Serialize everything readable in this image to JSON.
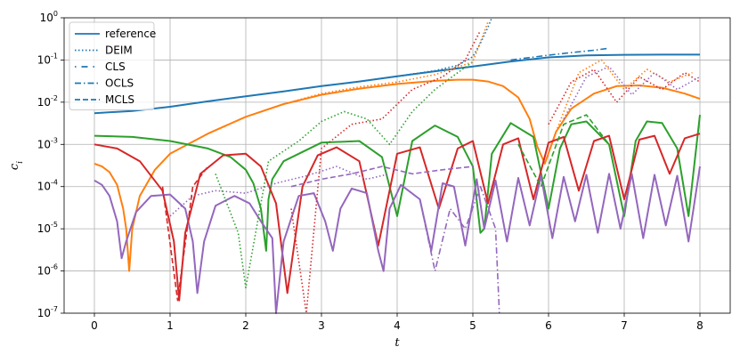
{
  "chart_data": {
    "type": "line",
    "xlabel": "t",
    "ylabel": "c_i",
    "xlim": [
      -0.4,
      8.4
    ],
    "ylim": [
      1e-07,
      1
    ],
    "yscale": "log",
    "grid": true,
    "legend_position": "top-left",
    "x_ticks": [
      0,
      1,
      2,
      3,
      4,
      5,
      6,
      7,
      8
    ],
    "x_tick_labels": [
      "0",
      "1",
      "2",
      "3",
      "4",
      "5",
      "6",
      "7",
      "8"
    ],
    "y_ticks": [
      1e-07,
      1e-06,
      1e-05,
      0.0001,
      0.001,
      0.01,
      0.1,
      1
    ],
    "y_tick_labels": [
      {
        "base": "10",
        "exp": "-7"
      },
      {
        "base": "10",
        "exp": "-6"
      },
      {
        "base": "10",
        "exp": "-5"
      },
      {
        "base": "10",
        "exp": "-4"
      },
      {
        "base": "10",
        "exp": "-3"
      },
      {
        "base": "10",
        "exp": "-2"
      },
      {
        "base": "10",
        "exp": "-1"
      },
      {
        "base": "10",
        "exp": "0"
      }
    ],
    "legend": [
      {
        "label": "reference",
        "style": "solid"
      },
      {
        "label": "DEIM",
        "style": "dotted"
      },
      {
        "label": "CLS",
        "style": "dashdotsparse"
      },
      {
        "label": "OCLS",
        "style": "dashdot"
      },
      {
        "label": "MCLS",
        "style": "dashed"
      }
    ],
    "series": [
      {
        "color": "#1f77b4",
        "style": "solid",
        "x": [
          0,
          0.5,
          1,
          1.5,
          2,
          2.5,
          3,
          3.5,
          4,
          4.5,
          5,
          5.5,
          6,
          6.5,
          7,
          7.5,
          8
        ],
        "y": [
          0.0055,
          0.0062,
          0.0078,
          0.0105,
          0.0138,
          0.018,
          0.024,
          0.031,
          0.041,
          0.054,
          0.07,
          0.092,
          0.115,
          0.128,
          0.133,
          0.134,
          0.134
        ]
      },
      {
        "color": "#1f77b4",
        "style": "dotted",
        "x": [
          3.0,
          3.5,
          4.0,
          4.5,
          4.8,
          5.0,
          5.1,
          5.2,
          5.25
        ],
        "y": [
          0.024,
          0.031,
          0.041,
          0.056,
          0.075,
          0.12,
          0.25,
          0.6,
          1.0
        ]
      },
      {
        "color": "#1f77b4",
        "style": "dashdot",
        "x": [
          5.5,
          6.0,
          6.3,
          6.6,
          6.8
        ],
        "y": [
          0.1,
          0.13,
          0.15,
          0.17,
          0.19
        ]
      },
      {
        "color": "#ff7f0e",
        "style": "solid",
        "x": [
          0,
          0.1,
          0.2,
          0.3,
          0.38,
          0.42,
          0.46,
          0.5,
          0.6,
          0.8,
          1.0,
          1.5,
          2.0,
          2.5,
          3.0,
          3.5,
          4.0,
          4.5,
          4.8,
          5.0,
          5.2,
          5.4,
          5.6,
          5.75,
          5.85,
          5.95,
          6.1,
          6.3,
          6.6,
          6.9,
          7.2,
          7.5,
          7.8,
          8.0
        ],
        "y": [
          0.00035,
          0.0003,
          0.00022,
          0.00011,
          3e-05,
          1e-05,
          1e-06,
          1e-05,
          6e-05,
          0.00025,
          0.0006,
          0.0018,
          0.0045,
          0.009,
          0.015,
          0.021,
          0.027,
          0.032,
          0.034,
          0.034,
          0.031,
          0.024,
          0.013,
          0.004,
          0.0009,
          0.00035,
          0.002,
          0.007,
          0.016,
          0.024,
          0.025,
          0.022,
          0.016,
          0.012
        ]
      },
      {
        "color": "#2ca02c",
        "style": "solid",
        "x": [
          0,
          0.5,
          1.0,
          1.5,
          1.8,
          2.0,
          2.1,
          2.2,
          2.27,
          2.3,
          2.35,
          2.5,
          3.0,
          3.5,
          3.8,
          4.0,
          4.2,
          4.5,
          4.8,
          5.0,
          5.1,
          5.15,
          5.25,
          5.5,
          5.8,
          6.0,
          6.15,
          6.3,
          6.5,
          6.8,
          7.0,
          7.15,
          7.3,
          7.5,
          7.7,
          7.85,
          8.0
        ],
        "y": [
          0.0016,
          0.0015,
          0.0012,
          0.0008,
          0.0005,
          0.00025,
          0.00012,
          3e-05,
          3e-06,
          5e-05,
          0.00015,
          0.0004,
          0.0011,
          0.0012,
          0.0005,
          2e-05,
          0.0012,
          0.0028,
          0.0015,
          0.0003,
          8e-06,
          1e-05,
          0.0006,
          0.0032,
          0.0015,
          3e-05,
          0.0008,
          0.003,
          0.0035,
          0.001,
          2e-05,
          0.0012,
          0.0035,
          0.0032,
          0.0008,
          2e-05,
          0.005
        ]
      },
      {
        "color": "#d62728",
        "style": "solid",
        "x": [
          0,
          0.3,
          0.6,
          0.9,
          1.05,
          1.12,
          1.2,
          1.4,
          1.7,
          2.0,
          2.2,
          2.4,
          2.55,
          2.75,
          2.95,
          3.2,
          3.5,
          3.75,
          4.0,
          4.3,
          4.55,
          4.8,
          5.0,
          5.2,
          5.4,
          5.6,
          5.8,
          6.0,
          6.2,
          6.4,
          6.6,
          6.8,
          7.0,
          7.2,
          7.4,
          7.6,
          7.8,
          8.0
        ],
        "y": [
          0.001,
          0.0008,
          0.0004,
          8e-05,
          5e-06,
          2e-07,
          8e-06,
          0.0002,
          0.00055,
          0.0006,
          0.0003,
          4e-05,
          3e-07,
          0.0001,
          0.00055,
          0.00085,
          0.0004,
          4e-06,
          0.0006,
          0.00085,
          3e-05,
          0.0008,
          0.0012,
          4e-05,
          0.001,
          0.0014,
          5e-05,
          0.0011,
          0.0015,
          8e-05,
          0.0012,
          0.0016,
          5e-05,
          0.0013,
          0.0016,
          0.0002,
          0.0014,
          0.0018
        ]
      },
      {
        "color": "#9467bd",
        "style": "solid",
        "x": [
          0,
          0.1,
          0.2,
          0.3,
          0.36,
          0.42,
          0.55,
          0.75,
          1.0,
          1.2,
          1.3,
          1.36,
          1.45,
          1.6,
          1.85,
          2.05,
          2.2,
          2.35,
          2.4,
          2.5,
          2.7,
          2.9,
          3.05,
          3.15,
          3.25,
          3.4,
          3.6,
          3.75,
          3.82,
          3.9,
          4.05,
          4.3,
          4.45,
          4.6,
          4.75,
          4.9,
          5.05,
          5.15,
          5.3,
          5.45,
          5.6,
          5.75,
          5.9,
          6.05,
          6.2,
          6.35,
          6.5,
          6.65,
          6.8,
          6.95,
          7.1,
          7.25,
          7.4,
          7.55,
          7.7,
          7.85,
          8.0
        ],
        "y": [
          0.00014,
          0.00011,
          6e-05,
          1.5e-05,
          2e-06,
          5e-06,
          2.5e-05,
          6e-05,
          6.5e-05,
          3e-05,
          5e-06,
          3e-07,
          5e-06,
          3.5e-05,
          6e-05,
          4e-05,
          1.5e-05,
          6e-06,
          1e-07,
          5e-06,
          6e-05,
          7e-05,
          1.5e-05,
          3e-06,
          3e-05,
          9e-05,
          7e-05,
          3e-06,
          1e-06,
          3e-05,
          0.00011,
          5e-05,
          3e-06,
          0.00012,
          0.0001,
          4e-06,
          0.00015,
          1e-05,
          0.00014,
          5e-06,
          0.00016,
          1.2e-05,
          0.00018,
          6e-06,
          0.00017,
          1.5e-05,
          0.00019,
          8e-06,
          0.0002,
          1e-05,
          0.0002,
          6e-06,
          0.00019,
          1.2e-05,
          0.00018,
          5e-06,
          0.0003
        ]
      },
      {
        "color": "#9467bd",
        "style": "dotted",
        "x": [
          1.0,
          1.3,
          1.6,
          2.0,
          2.4,
          2.8,
          3.2,
          3.6,
          3.9
        ],
        "y": [
          2e-05,
          6e-05,
          8e-05,
          7e-05,
          0.00012,
          0.00018,
          0.0003,
          0.00015,
          0.0002
        ]
      },
      {
        "color": "#2ca02c",
        "style": "dotted",
        "x": [
          1.6,
          1.9,
          2.0,
          2.3,
          2.7,
          3.0,
          3.3,
          3.6,
          3.9,
          4.2,
          4.5,
          4.8,
          5.0
        ],
        "y": [
          0.0002,
          8e-06,
          4e-07,
          0.0004,
          0.0012,
          0.0035,
          0.006,
          0.004,
          0.001,
          0.006,
          0.02,
          0.05,
          0.09
        ]
      },
      {
        "color": "#ff7f0e",
        "style": "dotted",
        "x": [
          2.5,
          3.0,
          3.5,
          4.0,
          4.5,
          5.0,
          5.2
        ],
        "y": [
          0.009,
          0.016,
          0.023,
          0.03,
          0.045,
          0.09,
          0.8
        ]
      },
      {
        "color": "#d62728",
        "style": "dotted",
        "x": [
          2.6,
          2.8,
          3.0,
          3.4,
          3.8,
          4.2,
          4.6,
          4.9,
          5.1
        ],
        "y": [
          3e-05,
          1e-07,
          0.0008,
          0.003,
          0.004,
          0.02,
          0.04,
          0.1,
          0.5
        ]
      },
      {
        "color": "#d62728",
        "style": "dotted",
        "x": [
          6.0,
          6.3,
          6.6,
          6.9,
          7.2,
          7.5,
          7.8,
          8.0
        ],
        "y": [
          0.003,
          0.03,
          0.06,
          0.01,
          0.04,
          0.02,
          0.05,
          0.03
        ]
      },
      {
        "color": "#ff7f0e",
        "style": "dotted",
        "x": [
          6.1,
          6.4,
          6.7,
          7.0,
          7.3,
          7.6,
          7.9
        ],
        "y": [
          0.002,
          0.05,
          0.1,
          0.02,
          0.06,
          0.03,
          0.05
        ]
      },
      {
        "color": "#9467bd",
        "style": "dotted",
        "x": [
          6.2,
          6.5,
          6.8,
          7.1,
          7.4,
          7.7,
          8.0
        ],
        "y": [
          0.004,
          0.04,
          0.07,
          0.015,
          0.05,
          0.02,
          0.04
        ]
      },
      {
        "color": "#2ca02c",
        "style": "dashed",
        "x": [
          5.6,
          5.9,
          6.2,
          6.5,
          6.8
        ],
        "y": [
          0.001,
          0.0001,
          0.003,
          0.005,
          0.001
        ]
      },
      {
        "color": "#d62728",
        "style": "dashed",
        "x": [
          0.9,
          1.1,
          1.3,
          1.5
        ],
        "y": [
          0.0001,
          2e-07,
          0.0001,
          0.0003
        ]
      },
      {
        "color": "#9467bd",
        "style": "dashed",
        "x": [
          2.6,
          3.0,
          3.4,
          3.8,
          4.2,
          4.6,
          5.0
        ],
        "y": [
          0.0001,
          0.00015,
          0.0002,
          0.0003,
          0.0002,
          0.00025,
          0.0003
        ]
      },
      {
        "color": "#9467bd",
        "style": "dashdot",
        "x": [
          4.3,
          4.5,
          4.7,
          4.9,
          5.1,
          5.3,
          5.35
        ],
        "y": [
          5e-05,
          1e-06,
          3e-05,
          1e-05,
          0.0001,
          1e-05,
          1e-07
        ]
      }
    ]
  }
}
